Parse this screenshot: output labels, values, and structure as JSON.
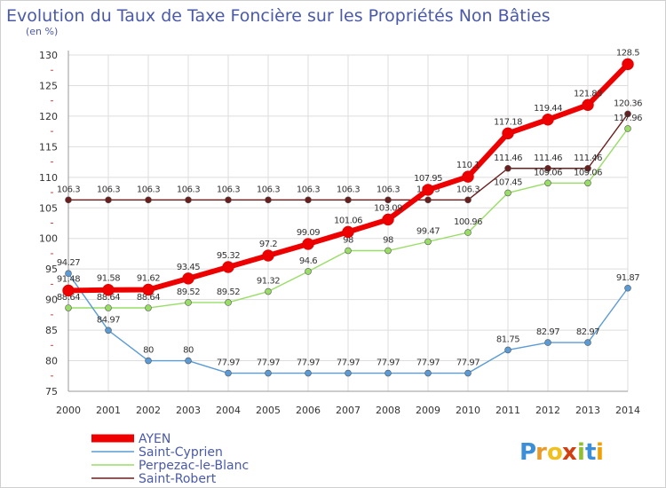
{
  "chart_data": {
    "type": "line",
    "title": "Evolution du Taux de Taxe Foncière sur les Propriétés Non Bâties",
    "subtitle": "(en %)",
    "xlabel": "",
    "ylabel": "",
    "x": [
      "2000",
      "2001",
      "2002",
      "2003",
      "2004",
      "2005",
      "2006",
      "2007",
      "2008",
      "2009",
      "2010",
      "2011",
      "2012",
      "2013",
      "2014"
    ],
    "ylim": [
      75,
      130
    ],
    "yticks": [
      "75",
      "80",
      "85",
      "90",
      "95",
      "100",
      "105",
      "110",
      "115",
      "120",
      "125",
      "130"
    ],
    "grid": true,
    "legend_position": "bottom-left",
    "series": [
      {
        "name": "Saint-Robert",
        "color": "#6b1e1e",
        "values": [
          106.3,
          106.3,
          106.3,
          106.3,
          106.3,
          106.3,
          106.3,
          106.3,
          106.3,
          106.3,
          106.3,
          111.46,
          111.46,
          111.46,
          120.36
        ],
        "labels": [
          "106.3",
          "106.3",
          "106.3",
          "106.3",
          "106.3",
          "106.3",
          "106.3",
          "106.3",
          "106.3",
          "106.3",
          "106.3",
          "111.46",
          "111.46",
          "111.46",
          "120.36"
        ]
      },
      {
        "name": "Perpezac-le-Blanc",
        "color": "#99dd66",
        "values": [
          88.64,
          88.64,
          88.64,
          89.52,
          89.52,
          91.32,
          94.6,
          98,
          98,
          99.47,
          100.96,
          107.45,
          109.06,
          109.06,
          117.96
        ],
        "labels": [
          "88.64",
          "88.64",
          "88.64",
          "89.52",
          "89.52",
          "91.32",
          "94.6",
          "98",
          "98",
          "99.47",
          "100.96",
          "107.45",
          "109.06",
          "109.06",
          "117.96"
        ]
      },
      {
        "name": "Saint-Cyprien",
        "color": "#5b9bd5",
        "values": [
          94.27,
          84.97,
          80,
          80,
          77.97,
          77.97,
          77.97,
          77.97,
          77.97,
          77.97,
          77.97,
          81.75,
          82.97,
          82.97,
          91.87
        ],
        "labels": [
          "94.27",
          "84.97",
          "80",
          "80",
          "77.97",
          "77.97",
          "77.97",
          "77.97",
          "77.97",
          "77.97",
          "77.97",
          "81.75",
          "82.97",
          "82.97",
          "91.87"
        ]
      },
      {
        "name": "AYEN",
        "color": "#ee0000",
        "values": [
          91.48,
          91.58,
          91.62,
          93.45,
          95.32,
          97.2,
          99.09,
          101.06,
          103.09,
          107.95,
          110.1,
          117.18,
          119.44,
          121.83,
          128.5
        ],
        "labels": [
          "91.48",
          "91.58",
          "91.62",
          "93.45",
          "95.32",
          "97.2",
          "99.09",
          "101.06",
          "103.09",
          "107.95",
          "110.1",
          "117.18",
          "119.44",
          "121.83",
          "128.5"
        ]
      }
    ],
    "legend": [
      "AYEN",
      "Saint-Cyprien",
      "Perpezac-le-Blanc",
      "Saint-Robert"
    ]
  },
  "logo": {
    "letters": [
      "P",
      "r",
      "o",
      "x",
      "i",
      "t",
      "i"
    ],
    "colors": [
      "#3a8fd8",
      "#e89a2b",
      "#f0c020",
      "#d04010",
      "#90c030",
      "#3a8fd8",
      "#f0a000"
    ]
  }
}
